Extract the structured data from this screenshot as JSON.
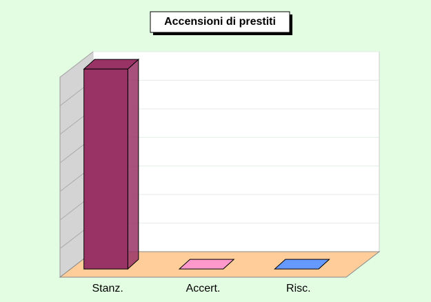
{
  "chart_data": {
    "type": "bar3d",
    "title": "Accensioni di prestiti",
    "categories": [
      "Stanz.",
      "Accert.",
      "Risc."
    ],
    "values": [
      7,
      0,
      0
    ],
    "colors": [
      "#993366",
      "#ff99cc",
      "#6699ff"
    ],
    "ylim": [
      0,
      7
    ],
    "yticks": [
      0,
      1,
      2,
      3,
      4,
      5,
      6,
      7
    ],
    "grid": true
  }
}
